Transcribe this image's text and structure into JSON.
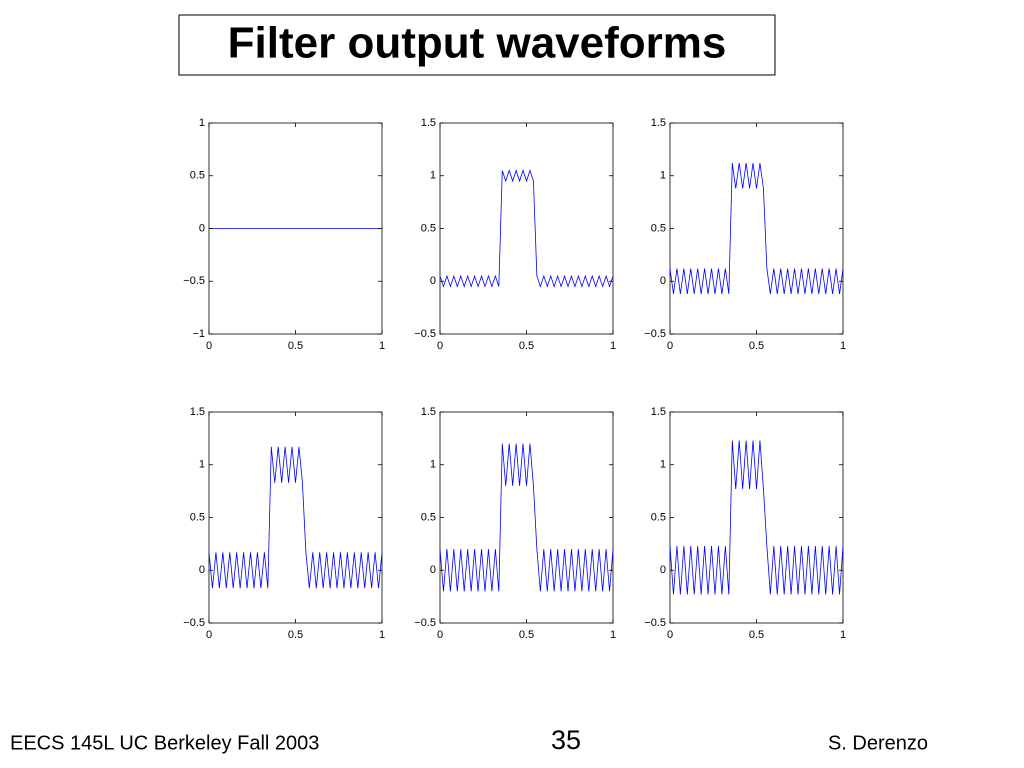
{
  "slide": {
    "title": "Filter output waveforms",
    "footer_left": "EECS 145L UC Berkeley Fall 2003",
    "page_number": "35",
    "footer_right": "S. Derenzo"
  },
  "chart_data": [
    {
      "type": "line",
      "color": "#0000ff",
      "xlim": [
        0,
        1
      ],
      "xticks": [
        0,
        0.5,
        1
      ],
      "ylim": [
        -1,
        1
      ],
      "yticks": [
        {
          "value": -1,
          "label": "−1"
        },
        {
          "value": -0.5,
          "label": "−0.5"
        },
        0,
        0.5,
        1
      ],
      "x": [
        0,
        1
      ],
      "values": [
        0,
        0
      ]
    },
    {
      "type": "line",
      "color": "#0000ff",
      "xlim": [
        0,
        1
      ],
      "xticks": [
        0,
        0.5,
        1
      ],
      "ylim": [
        -0.5,
        1.5
      ],
      "yticks": [
        {
          "value": -0.5,
          "label": "−0.5"
        },
        0,
        0.5,
        1,
        1.5
      ],
      "x": [
        0,
        0.02,
        0.04,
        0.06,
        0.08,
        0.1,
        0.12,
        0.14,
        0.16,
        0.18,
        0.2,
        0.22,
        0.24,
        0.26,
        0.28,
        0.3,
        0.32,
        0.34,
        0.36,
        0.38,
        0.4,
        0.42,
        0.44,
        0.46,
        0.48,
        0.5,
        0.52,
        0.54,
        0.56,
        0.58,
        0.6,
        0.62,
        0.64,
        0.66,
        0.68,
        0.7,
        0.72,
        0.74,
        0.76,
        0.78,
        0.8,
        0.82,
        0.84,
        0.86,
        0.88,
        0.9,
        0.92,
        0.94,
        0.96,
        0.98,
        1
      ],
      "values": [
        0.05,
        -0.05,
        0.05,
        -0.05,
        0.05,
        -0.05,
        0.05,
        -0.05,
        0.05,
        -0.05,
        0.05,
        -0.05,
        0.05,
        -0.05,
        0.05,
        -0.05,
        0.05,
        -0.05,
        1.05,
        0.95,
        1.05,
        0.95,
        1.05,
        0.95,
        1.05,
        0.95,
        1.05,
        0.95,
        0.05,
        -0.05,
        0.05,
        -0.05,
        0.05,
        -0.05,
        0.05,
        -0.05,
        0.05,
        -0.05,
        0.05,
        -0.05,
        0.05,
        -0.05,
        0.05,
        -0.05,
        0.05,
        -0.05,
        0.05,
        -0.05,
        0.05,
        -0.05,
        0.05
      ]
    },
    {
      "type": "line",
      "color": "#0000ff",
      "xlim": [
        0,
        1
      ],
      "xticks": [
        0,
        0.5,
        1
      ],
      "ylim": [
        -0.5,
        1.5
      ],
      "yticks": [
        {
          "value": -0.5,
          "label": "−0.5"
        },
        0,
        0.5,
        1,
        1.5
      ],
      "x": [
        0,
        0.02,
        0.04,
        0.06,
        0.08,
        0.1,
        0.12,
        0.14,
        0.16,
        0.18,
        0.2,
        0.22,
        0.24,
        0.26,
        0.28,
        0.3,
        0.32,
        0.34,
        0.36,
        0.38,
        0.4,
        0.42,
        0.44,
        0.46,
        0.48,
        0.5,
        0.52,
        0.54,
        0.56,
        0.58,
        0.6,
        0.62,
        0.64,
        0.66,
        0.68,
        0.7,
        0.72,
        0.74,
        0.76,
        0.78,
        0.8,
        0.82,
        0.84,
        0.86,
        0.88,
        0.9,
        0.92,
        0.94,
        0.96,
        0.98,
        1
      ],
      "values": [
        0.12,
        -0.12,
        0.12,
        -0.12,
        0.12,
        -0.12,
        0.12,
        -0.12,
        0.12,
        -0.12,
        0.12,
        -0.12,
        0.12,
        -0.12,
        0.12,
        -0.12,
        0.12,
        -0.12,
        1.12,
        0.88,
        1.12,
        0.88,
        1.12,
        0.88,
        1.12,
        0.88,
        1.12,
        0.88,
        0.12,
        -0.12,
        0.12,
        -0.12,
        0.12,
        -0.12,
        0.12,
        -0.12,
        0.12,
        -0.12,
        0.12,
        -0.12,
        0.12,
        -0.12,
        0.12,
        -0.12,
        0.12,
        -0.12,
        0.12,
        -0.12,
        0.12,
        -0.12,
        0.12
      ]
    },
    {
      "type": "line",
      "color": "#0000ff",
      "xlim": [
        0,
        1
      ],
      "xticks": [
        0,
        0.5,
        1
      ],
      "ylim": [
        -0.5,
        1.5
      ],
      "yticks": [
        {
          "value": -0.5,
          "label": "−0.5"
        },
        0,
        0.5,
        1,
        1.5
      ],
      "x": [
        0,
        0.02,
        0.04,
        0.06,
        0.08,
        0.1,
        0.12,
        0.14,
        0.16,
        0.18,
        0.2,
        0.22,
        0.24,
        0.26,
        0.28,
        0.3,
        0.32,
        0.34,
        0.36,
        0.38,
        0.4,
        0.42,
        0.44,
        0.46,
        0.48,
        0.5,
        0.52,
        0.54,
        0.56,
        0.58,
        0.6,
        0.62,
        0.64,
        0.66,
        0.68,
        0.7,
        0.72,
        0.74,
        0.76,
        0.78,
        0.8,
        0.82,
        0.84,
        0.86,
        0.88,
        0.9,
        0.92,
        0.94,
        0.96,
        0.98,
        1
      ],
      "values": [
        0.17,
        -0.17,
        0.17,
        -0.17,
        0.17,
        -0.17,
        0.17,
        -0.17,
        0.17,
        -0.17,
        0.17,
        -0.17,
        0.17,
        -0.17,
        0.17,
        -0.17,
        0.17,
        -0.17,
        1.17,
        0.83,
        1.17,
        0.83,
        1.17,
        0.83,
        1.17,
        0.83,
        1.17,
        0.83,
        0.17,
        -0.17,
        0.17,
        -0.17,
        0.17,
        -0.17,
        0.17,
        -0.17,
        0.17,
        -0.17,
        0.17,
        -0.17,
        0.17,
        -0.17,
        0.17,
        -0.17,
        0.17,
        -0.17,
        0.17,
        -0.17,
        0.17,
        -0.17,
        0.17
      ]
    },
    {
      "type": "line",
      "color": "#0000ff",
      "xlim": [
        0,
        1
      ],
      "xticks": [
        0,
        0.5,
        1
      ],
      "ylim": [
        -0.5,
        1.5
      ],
      "yticks": [
        {
          "value": -0.5,
          "label": "−0.5"
        },
        0,
        0.5,
        1,
        1.5
      ],
      "x": [
        0,
        0.02,
        0.04,
        0.06,
        0.08,
        0.1,
        0.12,
        0.14,
        0.16,
        0.18,
        0.2,
        0.22,
        0.24,
        0.26,
        0.28,
        0.3,
        0.32,
        0.34,
        0.36,
        0.38,
        0.4,
        0.42,
        0.44,
        0.46,
        0.48,
        0.5,
        0.52,
        0.54,
        0.56,
        0.58,
        0.6,
        0.62,
        0.64,
        0.66,
        0.68,
        0.7,
        0.72,
        0.74,
        0.76,
        0.78,
        0.8,
        0.82,
        0.84,
        0.86,
        0.88,
        0.9,
        0.92,
        0.94,
        0.96,
        0.98,
        1
      ],
      "values": [
        0.2,
        -0.2,
        0.2,
        -0.2,
        0.2,
        -0.2,
        0.2,
        -0.2,
        0.2,
        -0.2,
        0.2,
        -0.2,
        0.2,
        -0.2,
        0.2,
        -0.2,
        0.2,
        -0.2,
        1.2,
        0.8,
        1.2,
        0.8,
        1.2,
        0.8,
        1.2,
        0.8,
        1.2,
        0.8,
        0.2,
        -0.2,
        0.2,
        -0.2,
        0.2,
        -0.2,
        0.2,
        -0.2,
        0.2,
        -0.2,
        0.2,
        -0.2,
        0.2,
        -0.2,
        0.2,
        -0.2,
        0.2,
        -0.2,
        0.2,
        -0.2,
        0.2,
        -0.2,
        0.2
      ]
    },
    {
      "type": "line",
      "color": "#0000ff",
      "xlim": [
        0,
        1
      ],
      "xticks": [
        0,
        0.5,
        1
      ],
      "ylim": [
        -0.5,
        1.5
      ],
      "yticks": [
        {
          "value": -0.5,
          "label": "−0.5"
        },
        0,
        0.5,
        1,
        1.5
      ],
      "x": [
        0,
        0.02,
        0.04,
        0.06,
        0.08,
        0.1,
        0.12,
        0.14,
        0.16,
        0.18,
        0.2,
        0.22,
        0.24,
        0.26,
        0.28,
        0.3,
        0.32,
        0.34,
        0.36,
        0.38,
        0.4,
        0.42,
        0.44,
        0.46,
        0.48,
        0.5,
        0.52,
        0.54,
        0.56,
        0.58,
        0.6,
        0.62,
        0.64,
        0.66,
        0.68,
        0.7,
        0.72,
        0.74,
        0.76,
        0.78,
        0.8,
        0.82,
        0.84,
        0.86,
        0.88,
        0.9,
        0.92,
        0.94,
        0.96,
        0.98,
        1
      ],
      "values": [
        0.23,
        -0.23,
        0.23,
        -0.23,
        0.23,
        -0.23,
        0.23,
        -0.23,
        0.23,
        -0.23,
        0.23,
        -0.23,
        0.23,
        -0.23,
        0.23,
        -0.23,
        0.23,
        -0.23,
        1.23,
        0.77,
        1.23,
        0.77,
        1.23,
        0.77,
        1.23,
        0.77,
        1.23,
        0.77,
        0.23,
        -0.23,
        0.23,
        -0.23,
        0.23,
        -0.23,
        0.23,
        -0.23,
        0.23,
        -0.23,
        0.23,
        -0.23,
        0.23,
        -0.23,
        0.23,
        -0.23,
        0.23,
        -0.23,
        0.23,
        -0.23,
        0.23,
        -0.23,
        0.23
      ]
    }
  ]
}
